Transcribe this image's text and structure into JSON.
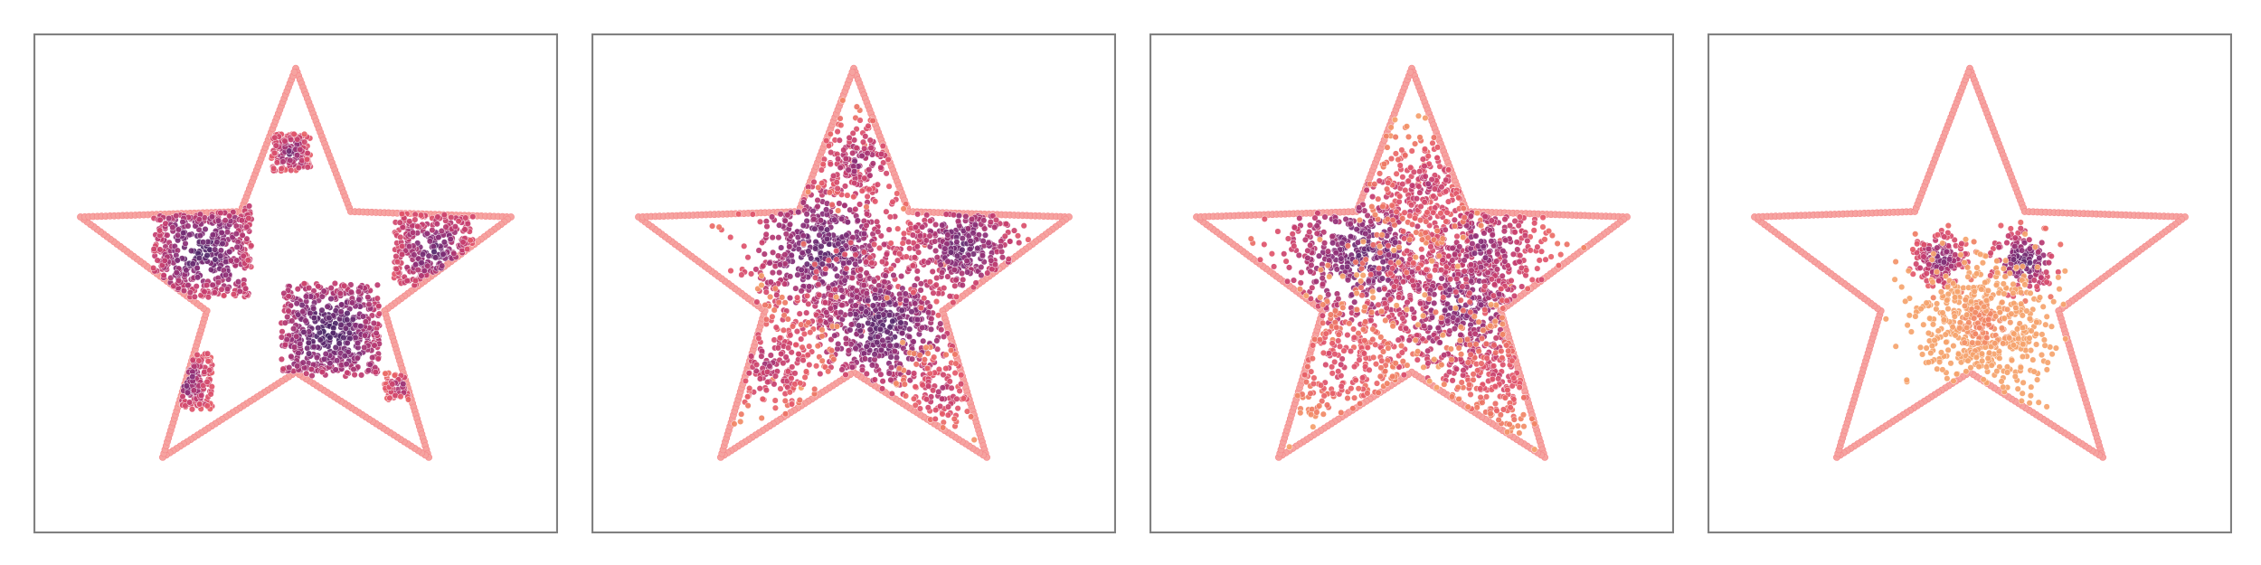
{
  "colors": {
    "background": "#ffffff",
    "frame": "#808080",
    "boundary": "#f6a3a0",
    "boundary_edge": "#f4878a",
    "scale": [
      "#2f1b58",
      "#5a2a6e",
      "#8c2f78",
      "#c13a6f",
      "#e4576a",
      "#f07f63",
      "#f5a36c"
    ]
  },
  "chart_data": [
    {
      "type": "scatter",
      "xlim": [
        0,
        1
      ],
      "ylim": [
        0,
        1
      ],
      "grid": false,
      "axes_ticks": false,
      "boundary": {
        "shape": "star",
        "points": 5,
        "center": [
          0.5,
          0.5
        ],
        "outer_radius": 0.46,
        "inner_radius": 0.19
      },
      "clusters": [
        {
          "kind": "square",
          "center": [
            0.31,
            0.57
          ],
          "half_size": 0.1,
          "n": 460,
          "color_level": 0.12
        },
        {
          "kind": "square",
          "center": [
            0.57,
            0.4
          ],
          "half_size": 0.1,
          "n": 520,
          "color_level": 0.06
        },
        {
          "kind": "square",
          "center": [
            0.78,
            0.57
          ],
          "half_size": 0.08,
          "n": 280,
          "color_level": 0.18
        },
        {
          "kind": "square",
          "center": [
            0.49,
            0.78
          ],
          "half_size": 0.04,
          "n": 140,
          "color_level": 0.22
        },
        {
          "kind": "square",
          "center": [
            0.27,
            0.29
          ],
          "half_size": 0.06,
          "n": 140,
          "color_level": 0.22
        },
        {
          "kind": "square",
          "center": [
            0.71,
            0.28
          ],
          "half_size": 0.03,
          "n": 60,
          "color_level": 0.3
        }
      ]
    },
    {
      "type": "scatter",
      "xlim": [
        0,
        1
      ],
      "ylim": [
        0,
        1
      ],
      "grid": false,
      "axes_ticks": false,
      "boundary": {
        "shape": "star",
        "points": 5,
        "center": [
          0.5,
          0.5
        ],
        "outer_radius": 0.46,
        "inner_radius": 0.19
      },
      "clusters": [
        {
          "kind": "gaussian",
          "center": [
            0.44,
            0.57
          ],
          "spread": 0.075,
          "n": 560,
          "color_level": 0.15
        },
        {
          "kind": "gaussian",
          "center": [
            0.56,
            0.41
          ],
          "spread": 0.075,
          "n": 560,
          "color_level": 0.15
        },
        {
          "kind": "gaussian",
          "center": [
            0.72,
            0.58
          ],
          "spread": 0.06,
          "n": 320,
          "color_level": 0.2
        },
        {
          "kind": "gaussian",
          "center": [
            0.51,
            0.76
          ],
          "spread": 0.05,
          "n": 160,
          "color_level": 0.35
        },
        {
          "kind": "gaussian",
          "center": [
            0.33,
            0.33
          ],
          "spread": 0.065,
          "n": 180,
          "color_level": 0.42
        },
        {
          "kind": "gaussian",
          "center": [
            0.68,
            0.27
          ],
          "spread": 0.05,
          "n": 110,
          "color_level": 0.45
        }
      ]
    },
    {
      "type": "scatter",
      "xlim": [
        0,
        1
      ],
      "ylim": [
        0,
        1
      ],
      "grid": false,
      "axes_ticks": false,
      "boundary": {
        "shape": "star",
        "points": 5,
        "center": [
          0.5,
          0.5
        ],
        "outer_radius": 0.46,
        "inner_radius": 0.19
      },
      "clusters": [
        {
          "kind": "gaussian",
          "center": [
            0.4,
            0.56
          ],
          "spread": 0.09,
          "n": 520,
          "color_level": 0.2
        },
        {
          "kind": "gaussian",
          "center": [
            0.6,
            0.45
          ],
          "spread": 0.1,
          "n": 560,
          "color_level": 0.28
        },
        {
          "kind": "gaussian",
          "center": [
            0.64,
            0.58
          ],
          "spread": 0.07,
          "n": 260,
          "color_level": 0.3
        },
        {
          "kind": "gaussian",
          "center": [
            0.53,
            0.71
          ],
          "spread": 0.06,
          "n": 200,
          "color_level": 0.45
        },
        {
          "kind": "gaussian",
          "center": [
            0.36,
            0.33
          ],
          "spread": 0.08,
          "n": 220,
          "color_level": 0.55
        },
        {
          "kind": "gaussian",
          "center": [
            0.68,
            0.3
          ],
          "spread": 0.07,
          "n": 160,
          "color_level": 0.55
        }
      ]
    },
    {
      "type": "scatter",
      "xlim": [
        0,
        1
      ],
      "ylim": [
        0,
        1
      ],
      "grid": false,
      "axes_ticks": false,
      "boundary": {
        "shape": "star",
        "points": 5,
        "center": [
          0.5,
          0.5
        ],
        "outer_radius": 0.46,
        "inner_radius": 0.19
      },
      "clusters": [
        {
          "kind": "gaussian",
          "center": [
            0.44,
            0.55
          ],
          "spread": 0.03,
          "n": 170,
          "color_level": 0.25
        },
        {
          "kind": "gaussian",
          "center": [
            0.61,
            0.55
          ],
          "spread": 0.03,
          "n": 170,
          "color_level": 0.15
        },
        {
          "kind": "gaussian",
          "center": [
            0.53,
            0.41
          ],
          "spread": 0.07,
          "n": 560,
          "color_level": 0.82
        }
      ]
    }
  ]
}
